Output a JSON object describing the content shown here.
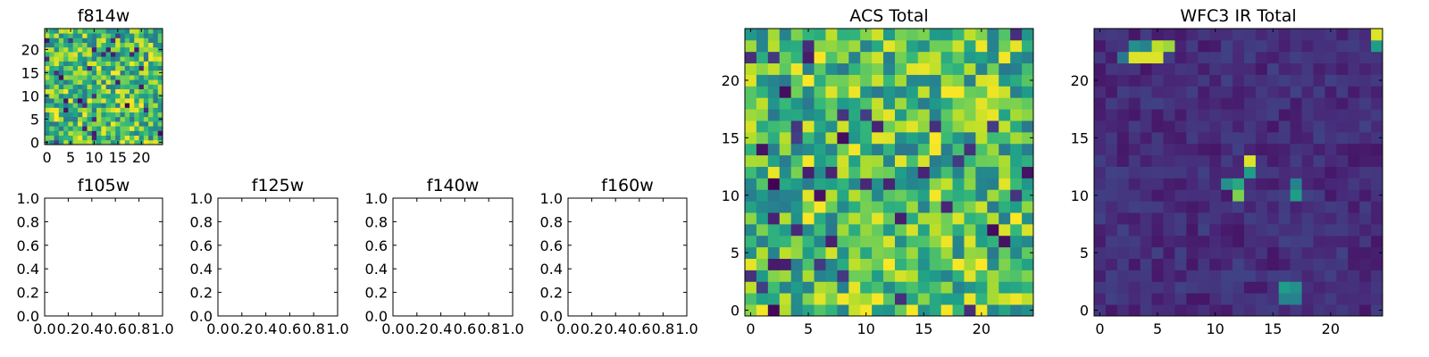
{
  "chart_data": [
    {
      "id": "f814w",
      "type": "heatmap",
      "title": "f814w",
      "cmap": "viridis",
      "grid_size": 25,
      "xlim": [
        -0.5,
        24.5
      ],
      "ylim": [
        -0.5,
        24.5
      ],
      "xticks": [
        0,
        5,
        10,
        15,
        20
      ],
      "yticks": [
        0,
        5,
        10,
        15,
        20
      ],
      "value_range": [
        0,
        1
      ],
      "pattern": "noise",
      "seed": 814
    },
    {
      "id": "f105w",
      "type": "empty",
      "title": "f105w",
      "xlim": [
        0,
        1
      ],
      "ylim": [
        0,
        1
      ],
      "xticks": [
        "0.0",
        "0.2",
        "0.4",
        "0.6",
        "0.8",
        "1.0"
      ],
      "yticks": [
        "0.0",
        "0.2",
        "0.4",
        "0.6",
        "0.8",
        "1.0"
      ]
    },
    {
      "id": "f125w",
      "type": "empty",
      "title": "f125w",
      "xlim": [
        0,
        1
      ],
      "ylim": [
        0,
        1
      ],
      "xticks": [
        "0.0",
        "0.2",
        "0.4",
        "0.6",
        "0.8",
        "1.0"
      ],
      "yticks": [
        "0.0",
        "0.2",
        "0.4",
        "0.6",
        "0.8",
        "1.0"
      ]
    },
    {
      "id": "f140w",
      "type": "empty",
      "title": "f140w",
      "xlim": [
        0,
        1
      ],
      "ylim": [
        0,
        1
      ],
      "xticks": [
        "0.0",
        "0.2",
        "0.4",
        "0.6",
        "0.8",
        "1.0"
      ],
      "yticks": [
        "0.0",
        "0.2",
        "0.4",
        "0.6",
        "0.8",
        "1.0"
      ]
    },
    {
      "id": "f160w",
      "type": "empty",
      "title": "f160w",
      "xlim": [
        0,
        1
      ],
      "ylim": [
        0,
        1
      ],
      "xticks": [
        "0.0",
        "0.2",
        "0.4",
        "0.6",
        "0.8",
        "1.0"
      ],
      "yticks": [
        "0.0",
        "0.2",
        "0.4",
        "0.6",
        "0.8",
        "1.0"
      ]
    },
    {
      "id": "acs-total",
      "type": "heatmap",
      "title": "ACS Total",
      "cmap": "viridis",
      "grid_size": 25,
      "xlim": [
        -0.5,
        24.5
      ],
      "ylim": [
        -0.5,
        24.5
      ],
      "xticks": [
        0,
        5,
        10,
        15,
        20
      ],
      "yticks": [
        0,
        5,
        10,
        15,
        20
      ],
      "value_range": [
        0,
        1
      ],
      "pattern": "noise",
      "seed": 1234
    },
    {
      "id": "wfc3-ir-total",
      "type": "heatmap",
      "title": "WFC3 IR Total",
      "cmap": "viridis",
      "grid_size": 25,
      "xlim": [
        -0.5,
        24.5
      ],
      "ylim": [
        -0.5,
        24.5
      ],
      "xticks": [
        0,
        5,
        10,
        15,
        20
      ],
      "yticks": [
        0,
        5,
        10,
        15,
        20
      ],
      "value_range": [
        0,
        1
      ],
      "pattern": "sparse",
      "seed": 3
    }
  ]
}
